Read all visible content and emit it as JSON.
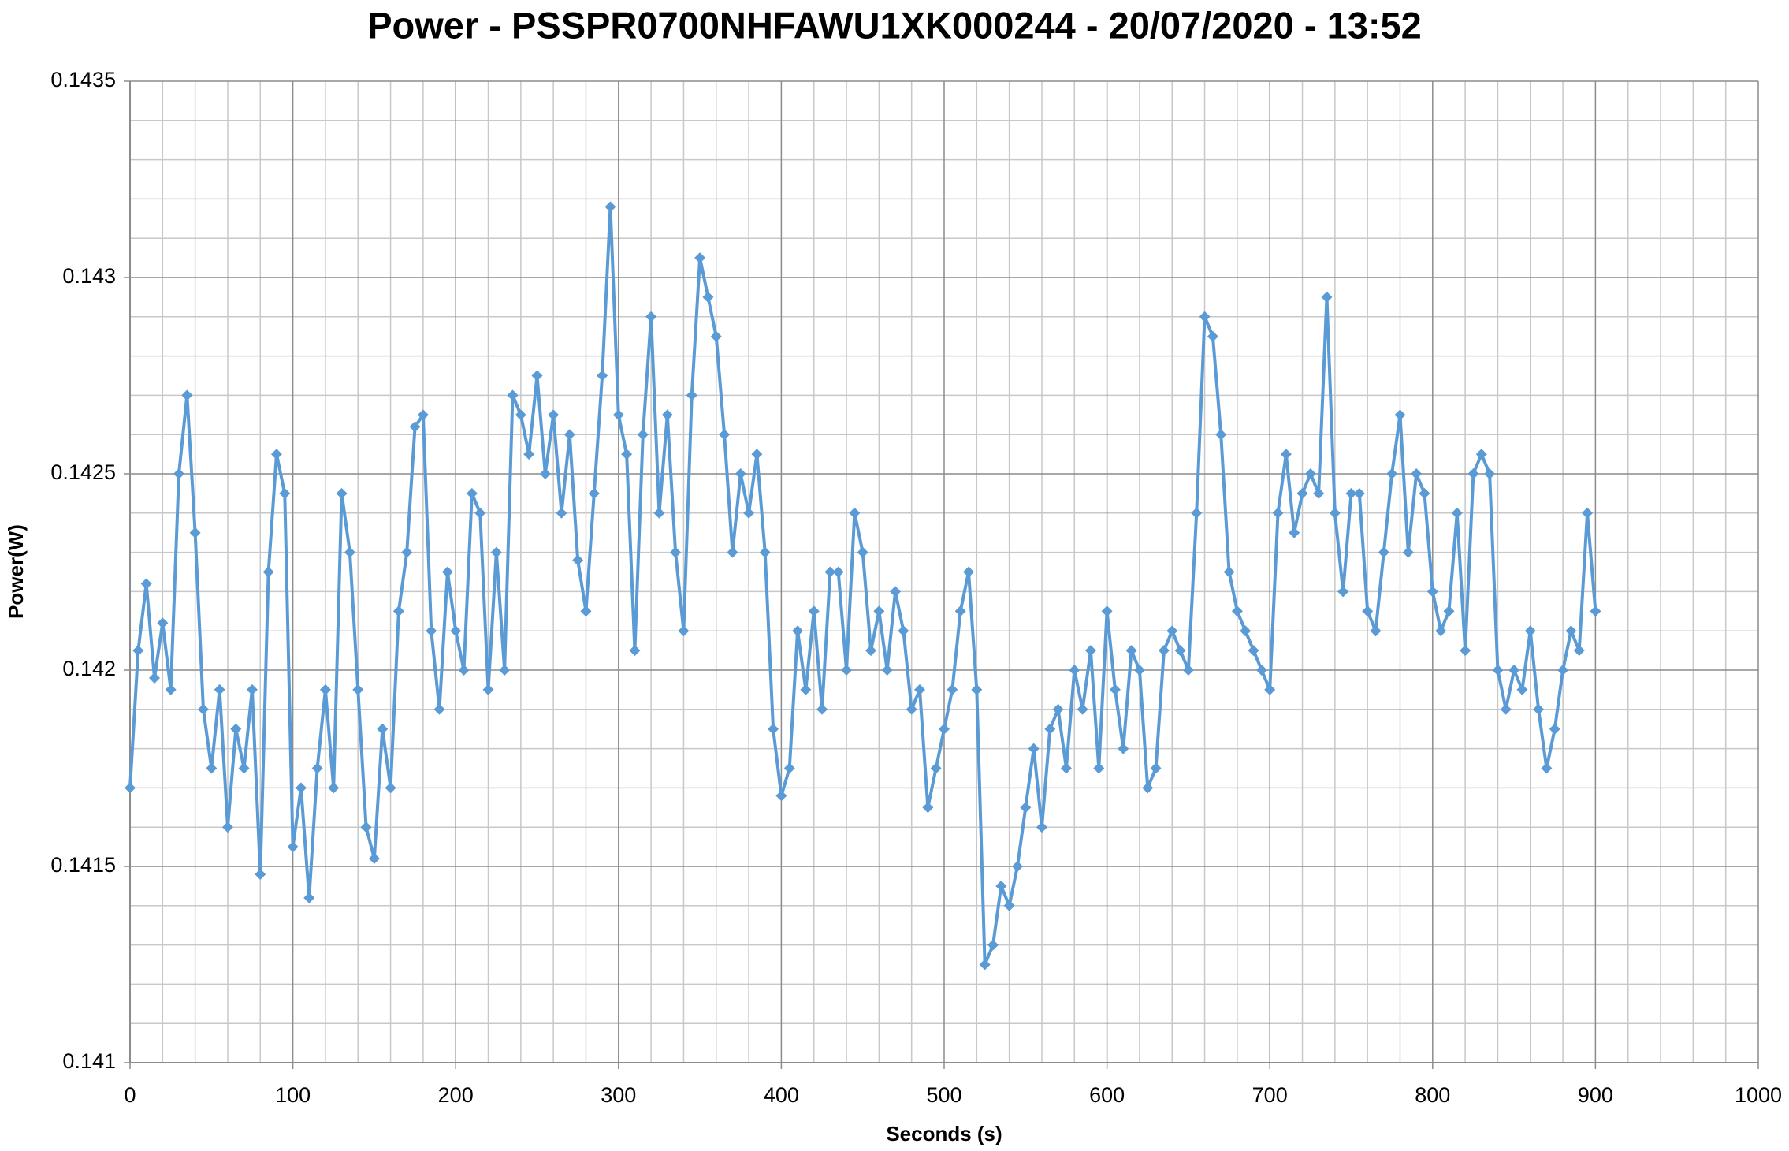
{
  "chart_data": {
    "type": "line",
    "title": "Power - PSSPR0700NHFAWU1XK000244 - 20/07/2020 - 13:52",
    "x_label": "Seconds (s)",
    "y_label": "Power(W)",
    "xlim": [
      0,
      1000
    ],
    "xticks": [
      0,
      100,
      200,
      300,
      400,
      500,
      600,
      700,
      800,
      900,
      1000
    ],
    "ylim": [
      0.141,
      0.1435
    ],
    "yticks": [
      0.141,
      0.1415,
      0.142,
      0.1425,
      0.143,
      0.1435
    ],
    "xminorticks": [
      20,
      40,
      60,
      80,
      120,
      140,
      160,
      180,
      220,
      240,
      260,
      280,
      320,
      340,
      360,
      380,
      420,
      440,
      460,
      480,
      520,
      540,
      560,
      580,
      620,
      640,
      660,
      680,
      720,
      740,
      760,
      780,
      820,
      840,
      860,
      880,
      920,
      940,
      960,
      980
    ],
    "yminorticks": [
      0.1411,
      0.1412,
      0.1413,
      0.1414,
      0.1416,
      0.1417,
      0.1418,
      0.1419,
      0.1421,
      0.1422,
      0.1423,
      0.1424,
      0.1426,
      0.1427,
      0.1428,
      0.1429,
      0.1431,
      0.1432,
      0.1433,
      0.1434
    ],
    "grid": true,
    "x": [
      0,
      5,
      10,
      15,
      20,
      25,
      30,
      35,
      40,
      45,
      50,
      55,
      60,
      65,
      70,
      75,
      80,
      85,
      90,
      95,
      100,
      105,
      110,
      115,
      120,
      125,
      130,
      135,
      140,
      145,
      150,
      155,
      160,
      165,
      170,
      175,
      180,
      185,
      190,
      195,
      200,
      205,
      210,
      215,
      220,
      225,
      230,
      235,
      240,
      245,
      250,
      255,
      260,
      265,
      270,
      275,
      280,
      285,
      290,
      295,
      300,
      305,
      310,
      315,
      320,
      325,
      330,
      335,
      340,
      345,
      350,
      355,
      360,
      365,
      370,
      375,
      380,
      385,
      390,
      395,
      400,
      405,
      410,
      415,
      420,
      425,
      430,
      435,
      440,
      445,
      450,
      455,
      460,
      465,
      470,
      475,
      480,
      485,
      490,
      495,
      500,
      505,
      510,
      515,
      520,
      525,
      530,
      535,
      540,
      545,
      550,
      555,
      560,
      565,
      570,
      575,
      580,
      585,
      590,
      595,
      600,
      605,
      610,
      615,
      620,
      625,
      630,
      635,
      640,
      645,
      650,
      655,
      660,
      665,
      670,
      675,
      680,
      685,
      690,
      695,
      700,
      705,
      710,
      715,
      720,
      725,
      730,
      735,
      740,
      745,
      750,
      755,
      760,
      765,
      770,
      775,
      780,
      785,
      790,
      795,
      800,
      805,
      810,
      815,
      820,
      825,
      830,
      835,
      840,
      845,
      850,
      855,
      860,
      865,
      870,
      875,
      880,
      885,
      890,
      895,
      900
    ],
    "series": [
      {
        "color": "#5b9bd5",
        "values": [
          0.1417,
          0.14205,
          0.14222,
          0.14198,
          0.14212,
          0.14195,
          0.1425,
          0.1427,
          0.14235,
          0.1419,
          0.14175,
          0.14195,
          0.1416,
          0.14185,
          0.14175,
          0.14195,
          0.14148,
          0.14225,
          0.14255,
          0.14245,
          0.14155,
          0.1417,
          0.14142,
          0.14175,
          0.14195,
          0.1417,
          0.14245,
          0.1423,
          0.14195,
          0.1416,
          0.14152,
          0.14185,
          0.1417,
          0.14215,
          0.1423,
          0.14262,
          0.14265,
          0.1421,
          0.1419,
          0.14225,
          0.1421,
          0.142,
          0.14245,
          0.1424,
          0.14195,
          0.1423,
          0.142,
          0.1427,
          0.14265,
          0.14255,
          0.14275,
          0.1425,
          0.14265,
          0.1424,
          0.1426,
          0.14228,
          0.14215,
          0.14245,
          0.14275,
          0.14318,
          0.14265,
          0.14255,
          0.14205,
          0.1426,
          0.1429,
          0.1424,
          0.14265,
          0.1423,
          0.1421,
          0.1427,
          0.14305,
          0.14295,
          0.14285,
          0.1426,
          0.1423,
          0.1425,
          0.1424,
          0.14255,
          0.1423,
          0.14185,
          0.14168,
          0.14175,
          0.1421,
          0.14195,
          0.14215,
          0.1419,
          0.14225,
          0.14225,
          0.142,
          0.1424,
          0.1423,
          0.14205,
          0.14215,
          0.142,
          0.1422,
          0.1421,
          0.1419,
          0.14195,
          0.14165,
          0.14175,
          0.14185,
          0.14195,
          0.14215,
          0.14225,
          0.14195,
          0.14125,
          0.1413,
          0.14145,
          0.1414,
          0.1415,
          0.14165,
          0.1418,
          0.1416,
          0.14185,
          0.1419,
          0.14175,
          0.142,
          0.1419,
          0.14205,
          0.14175,
          0.14215,
          0.14195,
          0.1418,
          0.14205,
          0.142,
          0.1417,
          0.14175,
          0.14205,
          0.1421,
          0.14205,
          0.142,
          0.1424,
          0.1429,
          0.14285,
          0.1426,
          0.14225,
          0.14215,
          0.1421,
          0.14205,
          0.142,
          0.14195,
          0.1424,
          0.14255,
          0.14235,
          0.14245,
          0.1425,
          0.14245,
          0.14295,
          0.1424,
          0.1422,
          0.14245,
          0.14245,
          0.14215,
          0.1421,
          0.1423,
          0.1425,
          0.14265,
          0.1423,
          0.1425,
          0.14245,
          0.1422,
          0.1421,
          0.14215,
          0.1424,
          0.14205,
          0.1425,
          0.14255,
          0.1425,
          0.142,
          0.1419,
          0.142,
          0.14195,
          0.1421,
          0.1419,
          0.14175,
          0.14185,
          0.142,
          0.1421,
          0.14205,
          0.1424,
          0.14215
        ]
      }
    ]
  }
}
